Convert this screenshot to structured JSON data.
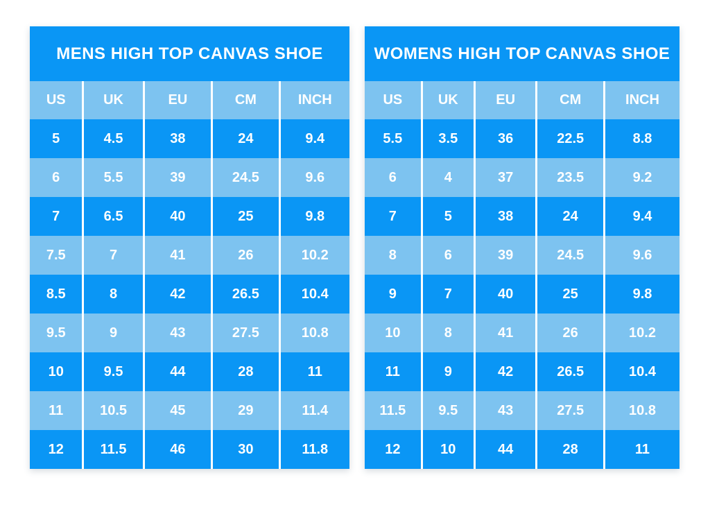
{
  "colors": {
    "row_dark_blue": "#0a96f5",
    "row_light_blue": "#7dc3f0",
    "text_white": "#ffffff",
    "page_background": "#ffffff"
  },
  "chart_data": [
    {
      "type": "table",
      "title": "MENS HIGH TOP CANVAS SHOE",
      "columns": [
        "US",
        "UK",
        "EU",
        "CM",
        "INCH"
      ],
      "rows": [
        [
          "5",
          "4.5",
          "38",
          "24",
          "9.4"
        ],
        [
          "6",
          "5.5",
          "39",
          "24.5",
          "9.6"
        ],
        [
          "7",
          "6.5",
          "40",
          "25",
          "9.8"
        ],
        [
          "7.5",
          "7",
          "41",
          "26",
          "10.2"
        ],
        [
          "8.5",
          "8",
          "42",
          "26.5",
          "10.4"
        ],
        [
          "9.5",
          "9",
          "43",
          "27.5",
          "10.8"
        ],
        [
          "10",
          "9.5",
          "44",
          "28",
          "11"
        ],
        [
          "11",
          "10.5",
          "45",
          "29",
          "11.4"
        ],
        [
          "12",
          "11.5",
          "46",
          "30",
          "11.8"
        ]
      ]
    },
    {
      "type": "table",
      "title": "WOMENS HIGH TOP CANVAS SHOE",
      "columns": [
        "US",
        "UK",
        "EU",
        "CM",
        "INCH"
      ],
      "rows": [
        [
          "5.5",
          "3.5",
          "36",
          "22.5",
          "8.8"
        ],
        [
          "6",
          "4",
          "37",
          "23.5",
          "9.2"
        ],
        [
          "7",
          "5",
          "38",
          "24",
          "9.4"
        ],
        [
          "8",
          "6",
          "39",
          "24.5",
          "9.6"
        ],
        [
          "9",
          "7",
          "40",
          "25",
          "9.8"
        ],
        [
          "10",
          "8",
          "41",
          "26",
          "10.2"
        ],
        [
          "11",
          "9",
          "42",
          "26.5",
          "10.4"
        ],
        [
          "11.5",
          "9.5",
          "43",
          "27.5",
          "10.8"
        ],
        [
          "12",
          "10",
          "44",
          "28",
          "11"
        ]
      ]
    }
  ]
}
